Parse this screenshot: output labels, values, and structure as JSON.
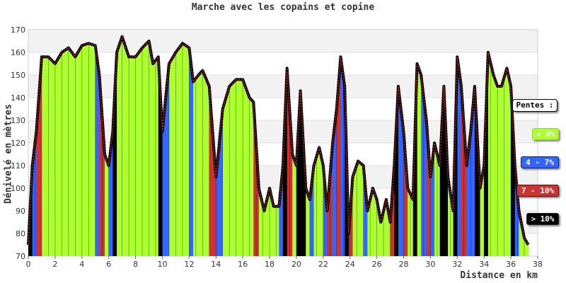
{
  "chart_data": {
    "type": "area",
    "title": "Marche avec les copains et copine",
    "xlabel": "Distance en km",
    "ylabel": "Dénivelé en mètres",
    "xlim": [
      0,
      38
    ],
    "ylim": [
      70,
      170
    ],
    "x_ticks": [
      "0",
      "2",
      "4",
      "6",
      "8",
      "10",
      "12",
      "14",
      "16",
      "18",
      "20",
      "22",
      "24",
      "26",
      "28",
      "30",
      "32",
      "34",
      "36",
      "38"
    ],
    "y_ticks": [
      "70",
      "80",
      "90",
      "100",
      "110",
      "120",
      "130",
      "140",
      "150",
      "160",
      "170"
    ],
    "grid": true,
    "legend_placement": "right",
    "series": [
      {
        "x": [
          0,
          0.3,
          0.6,
          1.0,
          1.5,
          2.0,
          2.5,
          3.0,
          3.5,
          4.0,
          4.5,
          5.0,
          5.3,
          5.7,
          6.0,
          6.3,
          6.6,
          7.0,
          7.5,
          8.0,
          8.5,
          9.0,
          9.3,
          9.7,
          10.0,
          10.5,
          11.0,
          11.5,
          12.0,
          12.3,
          12.7,
          13.0,
          13.5,
          14.0,
          14.5,
          15.0,
          15.5,
          16.0,
          16.5,
          16.8,
          17.2,
          17.6,
          18.0,
          18.3,
          18.7,
          19.0,
          19.3,
          19.7,
          20.0,
          20.3,
          20.7,
          21.0,
          21.3,
          21.7,
          22.0,
          22.3,
          22.7,
          23.0,
          23.3,
          23.6,
          23.9,
          24.2,
          24.6,
          25.0,
          25.3,
          25.7,
          26.0,
          26.3,
          26.7,
          27.0,
          27.3,
          27.6,
          28.0,
          28.3,
          28.7,
          29.0,
          29.3,
          29.7,
          30.0,
          30.3,
          30.7,
          31.0,
          31.3,
          31.7,
          32.0,
          32.3,
          32.7,
          33.0,
          33.3,
          33.7,
          34.0,
          34.3,
          34.7,
          35.0,
          35.3,
          35.7,
          36.0,
          36.3,
          36.6,
          37.0,
          37.3
        ],
        "y": [
          75,
          110,
          125,
          158,
          158,
          155,
          160,
          162,
          158,
          163,
          164,
          163,
          150,
          115,
          110,
          125,
          160,
          167,
          158,
          158,
          162,
          165,
          155,
          158,
          125,
          155,
          160,
          164,
          162,
          147,
          150,
          152,
          145,
          105,
          135,
          145,
          148,
          148,
          140,
          138,
          100,
          90,
          100,
          92,
          92,
          110,
          153,
          115,
          110,
          143,
          100,
          95,
          110,
          118,
          110,
          90,
          120,
          135,
          158,
          145,
          80,
          105,
          112,
          110,
          90,
          100,
          95,
          85,
          95,
          85,
          110,
          145,
          125,
          100,
          95,
          155,
          150,
          130,
          105,
          120,
          110,
          145,
          105,
          90,
          158,
          145,
          110,
          125,
          145,
          100,
          110,
          160,
          150,
          145,
          145,
          153,
          145,
          110,
          90,
          78,
          75
        ]
      }
    ],
    "slope_colors": [
      "#adff2f",
      "#3366ff",
      "#cc3333",
      "#000000"
    ],
    "line_color": "#000000",
    "marker_color": "#cc2222",
    "legend": {
      "title": "Pentes :",
      "items": [
        {
          "label": "< 4%",
          "color": "#adff2f"
        },
        {
          "label": "4 - 7%",
          "color": "#3366ff"
        },
        {
          "label": "7 - 10%",
          "color": "#cc3333"
        },
        {
          "label": "> 10%",
          "color": "#000000"
        }
      ]
    }
  }
}
